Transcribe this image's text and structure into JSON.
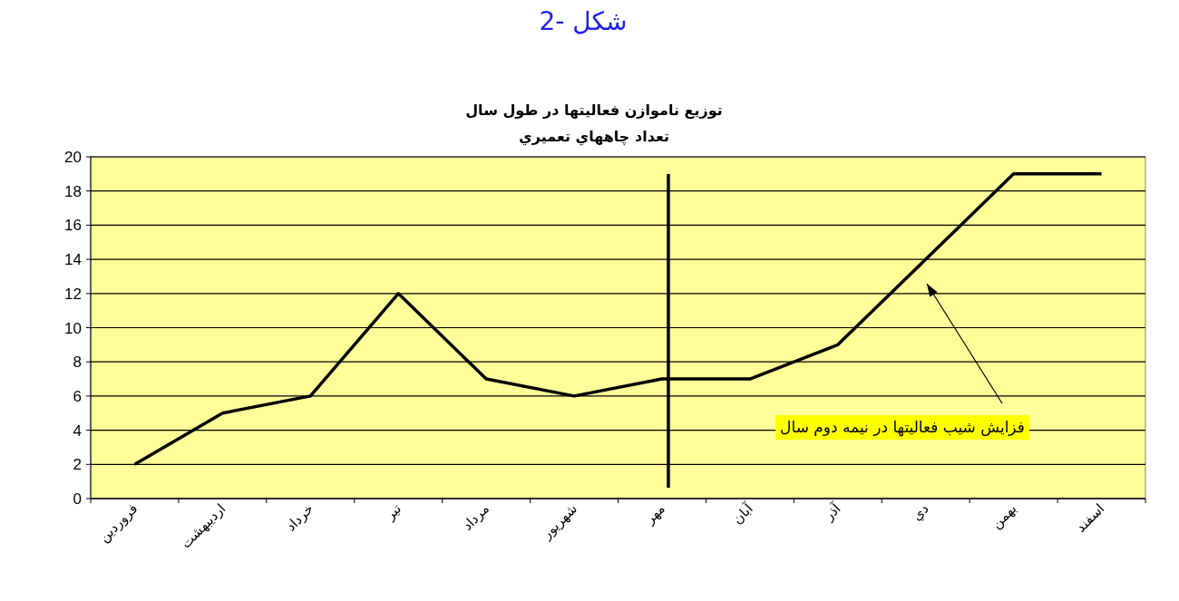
{
  "chart_data": {
    "type": "line",
    "title": "توزيع ناموازن فعاليتها در طول سال",
    "subtitle": "تعداد چاههاي تعميري",
    "categories": [
      "فروردين",
      "ارديبهشت",
      "خرداد",
      "تير",
      "مرداد",
      "شهريور",
      "مهر",
      "آبان",
      "آذر",
      "دي",
      "بهمن",
      "اسفند"
    ],
    "series": [
      {
        "color": "#000000",
        "values": [
          2,
          5,
          6,
          12,
          7,
          6,
          7,
          7,
          9,
          14,
          19,
          19
        ]
      }
    ],
    "ylim": [
      0,
      20
    ],
    "yticks": [
      0,
      2,
      4,
      6,
      8,
      10,
      12,
      14,
      16,
      18,
      20
    ],
    "grid": "y",
    "marker": "none",
    "line_style": "solid",
    "ref_lines": [
      {
        "axis": "x",
        "value": "مهر",
        "color": "#000000"
      }
    ],
    "annotations": [
      "شكل -2",
      "فزايش شيب فعاليتها در نيمه دوم سال"
    ]
  }
}
